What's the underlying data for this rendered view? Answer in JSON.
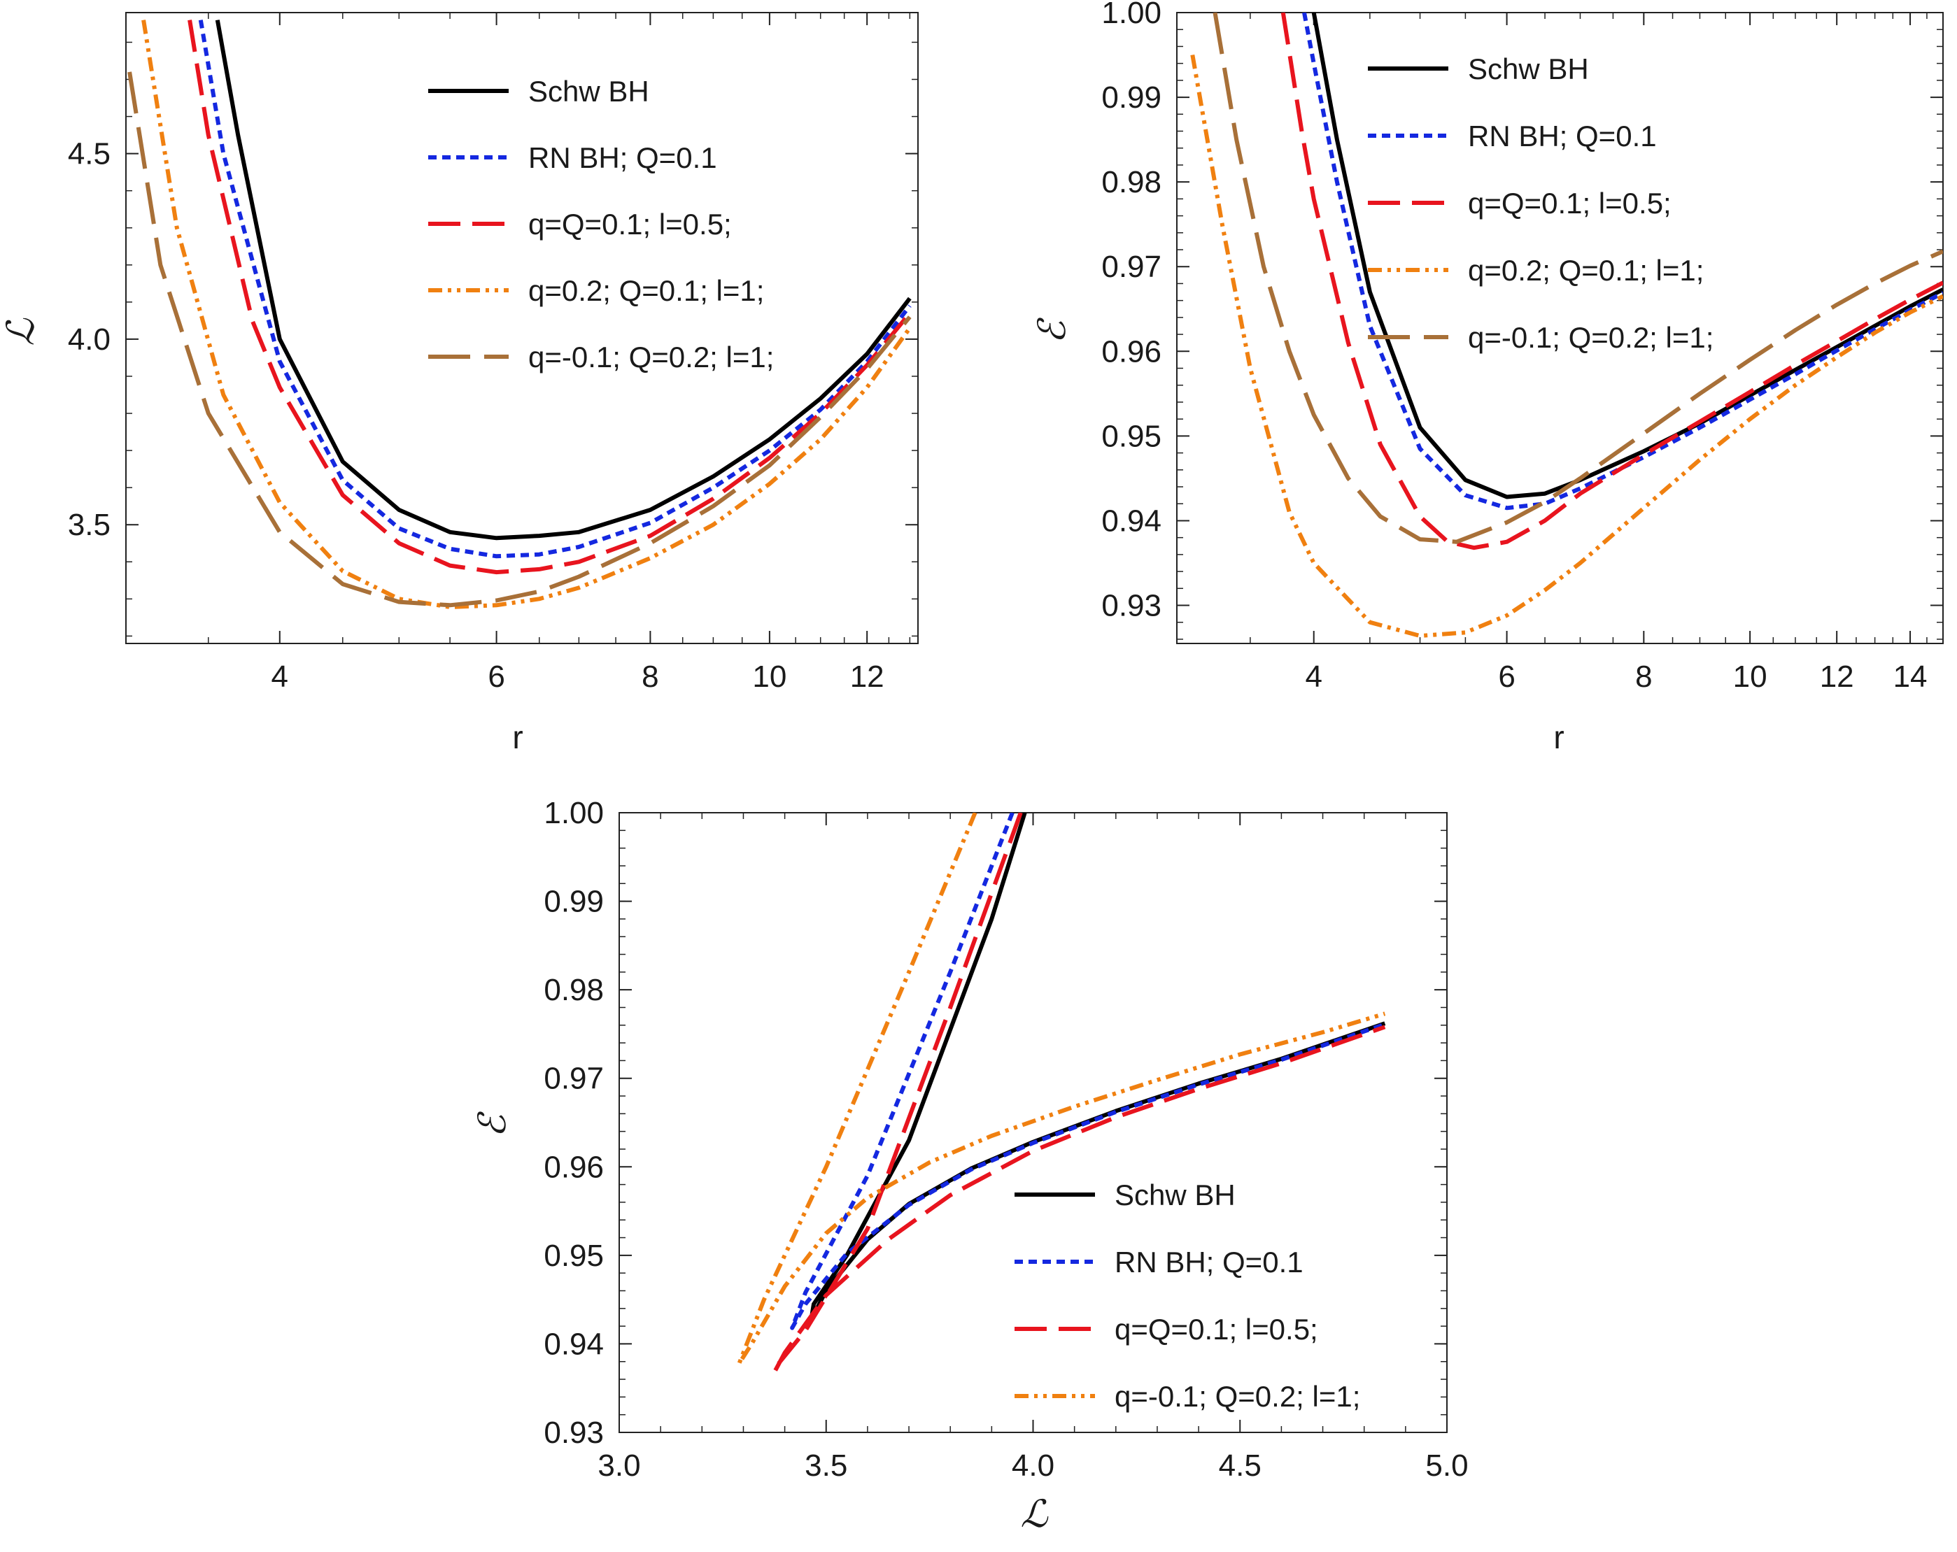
{
  "figure": {
    "panels": [
      {
        "id": "panel-1",
        "xlabel": "r",
        "ylabel": "ℒ"
      },
      {
        "id": "panel-2",
        "xlabel": "r",
        "ylabel": "ℰ"
      },
      {
        "id": "panel-3",
        "xlabel": "ℒ",
        "ylabel": "ℰ"
      }
    ]
  },
  "chart_data": [
    {
      "type": "line",
      "title": "",
      "xlabel": "r",
      "ylabel": "ℒ",
      "xscale": "log",
      "xlim": [
        3.0,
        13.2
      ],
      "ylim": [
        3.18,
        4.88
      ],
      "xticks": [
        4,
        6,
        8,
        10,
        12
      ],
      "xtick_labels": [
        "4",
        "6",
        "8",
        "10",
        "12"
      ],
      "yticks": [
        3.5,
        4.0,
        4.5
      ],
      "ytick_labels": [
        "3.5",
        "4.0",
        "4.5"
      ],
      "legend_position": "top-right",
      "series": [
        {
          "name": "Schw BH",
          "color": "#000000",
          "style": "solid",
          "x": [
            3.56,
            3.7,
            4.0,
            4.5,
            5.0,
            5.5,
            6.0,
            6.5,
            7.0,
            8.0,
            9.0,
            10.0,
            11.0,
            12.0,
            13.0
          ],
          "y": [
            4.86,
            4.55,
            4.0,
            3.67,
            3.54,
            3.48,
            3.464,
            3.47,
            3.48,
            3.54,
            3.63,
            3.73,
            3.84,
            3.96,
            4.11
          ]
        },
        {
          "name": "RN BH; Q=0.1",
          "color": "#1428e0",
          "style": "dotted",
          "x": [
            3.45,
            3.6,
            4.0,
            4.5,
            5.0,
            5.5,
            6.0,
            6.5,
            7.0,
            8.0,
            9.0,
            10.0,
            11.0,
            12.0,
            13.0
          ],
          "y": [
            4.86,
            4.5,
            3.94,
            3.62,
            3.49,
            3.435,
            3.415,
            3.42,
            3.44,
            3.505,
            3.6,
            3.7,
            3.81,
            3.94,
            4.09
          ]
        },
        {
          "name": "q=Q=0.1; l=0.5;",
          "color": "#e8141e",
          "style": "dashed",
          "x": [
            3.38,
            3.5,
            3.8,
            4.0,
            4.5,
            5.0,
            5.5,
            6.0,
            6.5,
            7.0,
            8.0,
            9.0,
            10.0,
            11.0,
            12.0,
            13.0
          ],
          "y": [
            4.86,
            4.55,
            4.05,
            3.87,
            3.58,
            3.45,
            3.39,
            3.372,
            3.38,
            3.4,
            3.47,
            3.57,
            3.68,
            3.8,
            3.93,
            4.07
          ]
        },
        {
          "name": "q=0.2; Q=0.1; l=1;",
          "color": "#f08010",
          "style": "dashdotdot",
          "x": [
            3.1,
            3.3,
            3.6,
            4.0,
            4.5,
            5.0,
            5.5,
            6.0,
            6.5,
            7.0,
            8.0,
            9.0,
            10.0,
            11.0,
            12.0,
            13.0
          ],
          "y": [
            4.86,
            4.3,
            3.85,
            3.56,
            3.375,
            3.3,
            3.278,
            3.283,
            3.3,
            3.33,
            3.41,
            3.5,
            3.61,
            3.73,
            3.87,
            4.03
          ]
        },
        {
          "name": "q=-0.1; Q=0.2; l=1;",
          "color": "#a87038",
          "style": "longdash",
          "x": [
            3.02,
            3.2,
            3.5,
            4.0,
            4.5,
            5.0,
            5.5,
            6.0,
            6.5,
            7.0,
            8.0,
            9.0,
            10.0,
            11.0,
            12.0,
            13.0
          ],
          "y": [
            4.72,
            4.2,
            3.8,
            3.48,
            3.34,
            3.292,
            3.283,
            3.296,
            3.32,
            3.36,
            3.45,
            3.55,
            3.66,
            3.79,
            3.92,
            4.06
          ]
        }
      ]
    },
    {
      "type": "line",
      "title": "",
      "xlabel": "r",
      "ylabel": "ℰ",
      "xscale": "log",
      "xlim": [
        3.0,
        15.0
      ],
      "ylim": [
        0.9255,
        1.0
      ],
      "xticks": [
        4,
        6,
        8,
        10,
        12,
        14
      ],
      "xtick_labels": [
        "4",
        "6",
        "8",
        "10",
        "12",
        "14"
      ],
      "yticks": [
        0.93,
        0.94,
        0.95,
        0.96,
        0.97,
        0.98,
        0.99,
        1.0
      ],
      "ytick_labels": [
        "0.93",
        "0.94",
        "0.95",
        "0.96",
        "0.97",
        "0.98",
        "0.99",
        "1.00"
      ],
      "legend_position": "top-right",
      "series": [
        {
          "name": "Schw BH",
          "color": "#000000",
          "style": "solid",
          "x": [
            4.0,
            4.2,
            4.5,
            5.0,
            5.5,
            6.0,
            6.5,
            7.0,
            8.0,
            9.0,
            10.0,
            11.0,
            12.0,
            13.0,
            14.0,
            15.0
          ],
          "y": [
            1.0,
            0.985,
            0.967,
            0.951,
            0.9448,
            0.9428,
            0.9432,
            0.9448,
            0.9482,
            0.9515,
            0.9548,
            0.9578,
            0.9605,
            0.963,
            0.9653,
            0.9673
          ]
        },
        {
          "name": "RN BH; Q=0.1",
          "color": "#1428e0",
          "style": "dotted",
          "x": [
            3.92,
            4.0,
            4.2,
            4.5,
            5.0,
            5.5,
            6.0,
            6.5,
            7.0,
            8.0,
            9.0,
            10.0,
            11.0,
            12.0,
            13.0,
            14.0,
            15.0
          ],
          "y": [
            1.0,
            0.994,
            0.98,
            0.963,
            0.9485,
            0.943,
            0.9415,
            0.942,
            0.9438,
            0.9475,
            0.951,
            0.9543,
            0.9573,
            0.9601,
            0.9626,
            0.9649,
            0.9669
          ]
        },
        {
          "name": "q=Q=0.1; l=0.5;",
          "color": "#e8141e",
          "style": "dashed",
          "x": [
            3.75,
            3.9,
            4.0,
            4.3,
            4.6,
            5.0,
            5.3,
            5.6,
            6.0,
            6.5,
            7.0,
            8.0,
            9.0,
            10.0,
            11.0,
            12.0,
            13.0,
            14.0,
            15.0
          ],
          "y": [
            1.0,
            0.986,
            0.978,
            0.961,
            0.949,
            0.9405,
            0.9375,
            0.9368,
            0.9375,
            0.94,
            0.9432,
            0.9478,
            0.9517,
            0.9552,
            0.9584,
            0.9612,
            0.9638,
            0.9661,
            0.9681
          ]
        },
        {
          "name": "q=0.2; Q=0.1; l=1;",
          "color": "#f08010",
          "style": "dashdotdot",
          "x": [
            3.1,
            3.3,
            3.5,
            3.8,
            4.0,
            4.5,
            5.0,
            5.5,
            6.0,
            6.5,
            7.0,
            8.0,
            9.0,
            10.0,
            11.0,
            12.0,
            13.0,
            14.0,
            15.0
          ],
          "y": [
            0.995,
            0.975,
            0.958,
            0.941,
            0.935,
            0.928,
            0.9264,
            0.9268,
            0.9288,
            0.9318,
            0.935,
            0.9415,
            0.9472,
            0.952,
            0.956,
            0.9593,
            0.9622,
            0.9646,
            0.9665
          ]
        },
        {
          "name": "q=-0.1; Q=0.2; l=1;",
          "color": "#a87038",
          "style": "longdash",
          "x": [
            3.25,
            3.4,
            3.6,
            3.8,
            4.0,
            4.3,
            4.6,
            5.0,
            5.4,
            6.0,
            6.5,
            7.0,
            8.0,
            9.0,
            10.0,
            11.0,
            12.0,
            13.0,
            14.0,
            15.0
          ],
          "y": [
            1.0,
            0.985,
            0.97,
            0.96,
            0.9525,
            0.945,
            0.9405,
            0.9378,
            0.9375,
            0.9398,
            0.9422,
            0.945,
            0.9503,
            0.955,
            0.959,
            0.9625,
            0.9655,
            0.968,
            0.9701,
            0.9718
          ]
        }
      ]
    },
    {
      "type": "line",
      "title": "",
      "xlabel": "ℒ",
      "ylabel": "ℰ",
      "xscale": "linear",
      "xlim": [
        3.0,
        5.0
      ],
      "ylim": [
        0.93,
        1.0
      ],
      "xticks": [
        3.0,
        3.5,
        4.0,
        4.5,
        5.0
      ],
      "xtick_labels": [
        "3.0",
        "3.5",
        "4.0",
        "4.5",
        "5.0"
      ],
      "yticks": [
        0.93,
        0.94,
        0.95,
        0.96,
        0.97,
        0.98,
        0.99,
        1.0
      ],
      "ytick_labels": [
        "0.93",
        "0.94",
        "0.95",
        "0.96",
        "0.97",
        "0.98",
        "0.99",
        "1.00"
      ],
      "legend_position": "bottom-right",
      "series": [
        {
          "name": "Schw BH",
          "color": "#000000",
          "style": "solid",
          "x": [
            3.98,
            3.9,
            3.7,
            3.55,
            3.47,
            3.464,
            3.5,
            3.6,
            3.7,
            3.85,
            4.0,
            4.2,
            4.4,
            4.6,
            4.85
          ],
          "y": [
            1.0,
            0.988,
            0.963,
            0.95,
            0.9445,
            0.9428,
            0.946,
            0.9518,
            0.9558,
            0.9598,
            0.9628,
            0.9663,
            0.9694,
            0.9722,
            0.9762
          ]
        },
        {
          "name": "RN BH; Q=0.1",
          "color": "#1428e0",
          "style": "dotted",
          "x": [
            3.95,
            3.8,
            3.6,
            3.45,
            3.418,
            3.45,
            3.55,
            3.7,
            3.85,
            4.0,
            4.2,
            4.4,
            4.6,
            4.85
          ],
          "y": [
            1.0,
            0.982,
            0.959,
            0.9458,
            0.9418,
            0.9445,
            0.9502,
            0.9557,
            0.9597,
            0.9627,
            0.9662,
            0.9693,
            0.9721,
            0.9761
          ]
        },
        {
          "name": "q=Q=0.1; l=0.5;",
          "color": "#e8141e",
          "style": "dashed",
          "x": [
            3.97,
            3.8,
            3.6,
            3.45,
            3.38,
            3.375,
            3.4,
            3.5,
            3.65,
            3.8,
            4.0,
            4.2,
            4.4,
            4.6,
            4.85
          ],
          "y": [
            1.0,
            0.978,
            0.953,
            0.9415,
            0.9375,
            0.9368,
            0.939,
            0.9455,
            0.9518,
            0.9568,
            0.9618,
            0.9656,
            0.9688,
            0.9717,
            0.9758
          ]
        },
        {
          "name": "q=-0.1; Q=0.2; l=1;",
          "color": "#f08010",
          "style": "dashdotdot",
          "x": [
            3.86,
            3.7,
            3.5,
            3.35,
            3.29,
            3.32,
            3.4,
            3.5,
            3.6,
            3.75,
            3.9,
            4.1,
            4.3,
            4.5,
            4.7,
            4.85
          ],
          "y": [
            1.0,
            0.982,
            0.96,
            0.945,
            0.9378,
            0.94,
            0.9465,
            0.9525,
            0.9565,
            0.9605,
            0.9635,
            0.9668,
            0.9698,
            0.9727,
            0.9752,
            0.9773
          ]
        }
      ]
    }
  ]
}
